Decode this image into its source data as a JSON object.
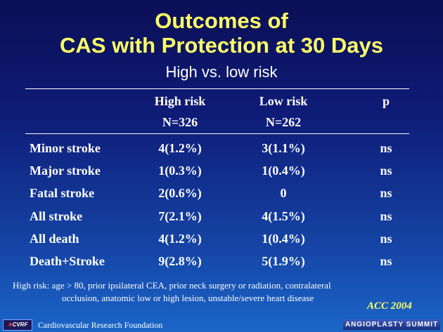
{
  "title": {
    "line1": "Outcomes of",
    "line2": "CAS with Protection at 30 Days"
  },
  "subtitle": "High vs. low risk",
  "table": {
    "headers": {
      "high": "High risk",
      "low": "Low risk",
      "p": "p"
    },
    "sizes": {
      "high": "N=326",
      "low": "N=262"
    },
    "rows": [
      {
        "label": "Minor stroke",
        "high": "4(1.2%)",
        "low": "3(1.1%)",
        "p": "ns"
      },
      {
        "label": "Major stroke",
        "high": "1(0.3%)",
        "low": "1(0.4%)",
        "p": "ns"
      },
      {
        "label": "Fatal stroke",
        "high": "2(0.6%)",
        "low": "0",
        "p": "ns"
      },
      {
        "label": "All stroke",
        "high": "7(2.1%)",
        "low": "4(1.5%)",
        "p": "ns"
      },
      {
        "label": "All death",
        "high": "4(1.2%)",
        "low": "1(0.4%)",
        "p": "ns"
      },
      {
        "label": "Death+Stroke",
        "high": "9(2.8%)",
        "low": "5(1.9%)",
        "p": "ns"
      }
    ]
  },
  "footnote": {
    "line1": "High risk: age > 80, prior ipsilateral CEA, prior neck surgery or radiation, contralateral",
    "line2": "occlusion, anatomic low or high lesion,  unstable/severe heart disease"
  },
  "source": "ACC 2004",
  "footer": {
    "logo_text": "CVRF",
    "foundation": "Cardiovascular Research Foundation",
    "badge": "ANGIOPLASTY SUMMIT"
  },
  "colors": {
    "title": "#ffff66",
    "background_top": "#0b0f55",
    "background_bottom": "#1a66c8"
  }
}
